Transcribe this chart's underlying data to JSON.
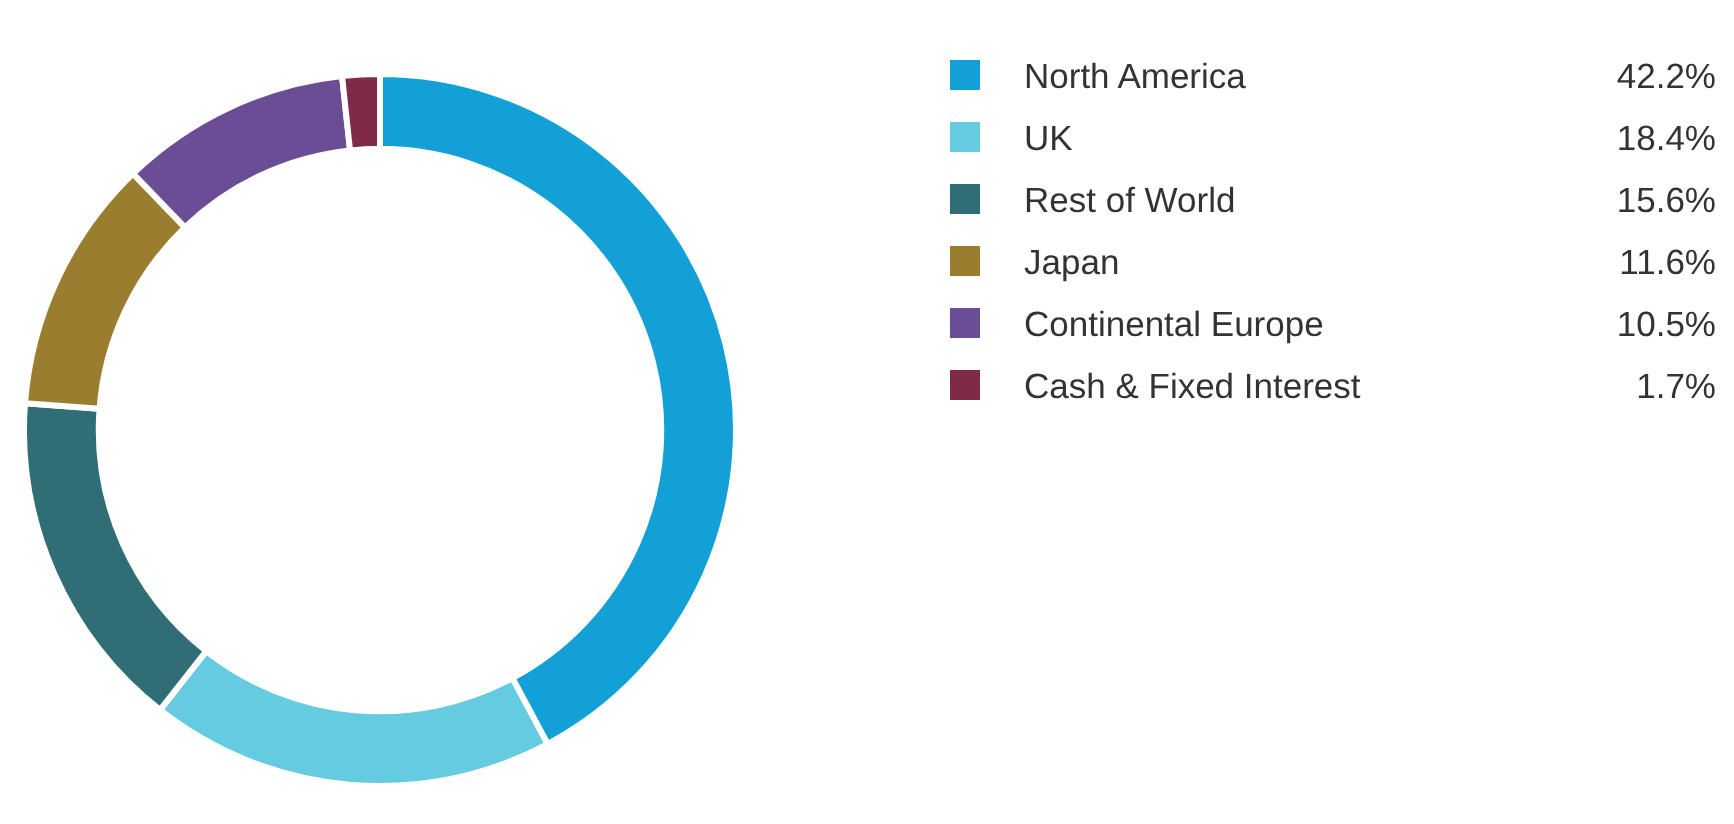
{
  "chart_data": {
    "type": "donut",
    "categories": [
      "North America",
      "UK",
      "Rest of World",
      "Japan",
      "Continental Europe",
      "Cash & Fixed Interest"
    ],
    "values": [
      42.2,
      18.4,
      15.6,
      11.6,
      10.5,
      1.7
    ],
    "colors": [
      "#12a0d7",
      "#65cbe0",
      "#2e6e74",
      "#9a7d2f",
      "#6a4d94",
      "#7f2a47"
    ],
    "value_labels": [
      "42.2%",
      "18.4%",
      "15.6%",
      "11.6%",
      "10.5%",
      "1.7%"
    ],
    "legend": "right"
  }
}
